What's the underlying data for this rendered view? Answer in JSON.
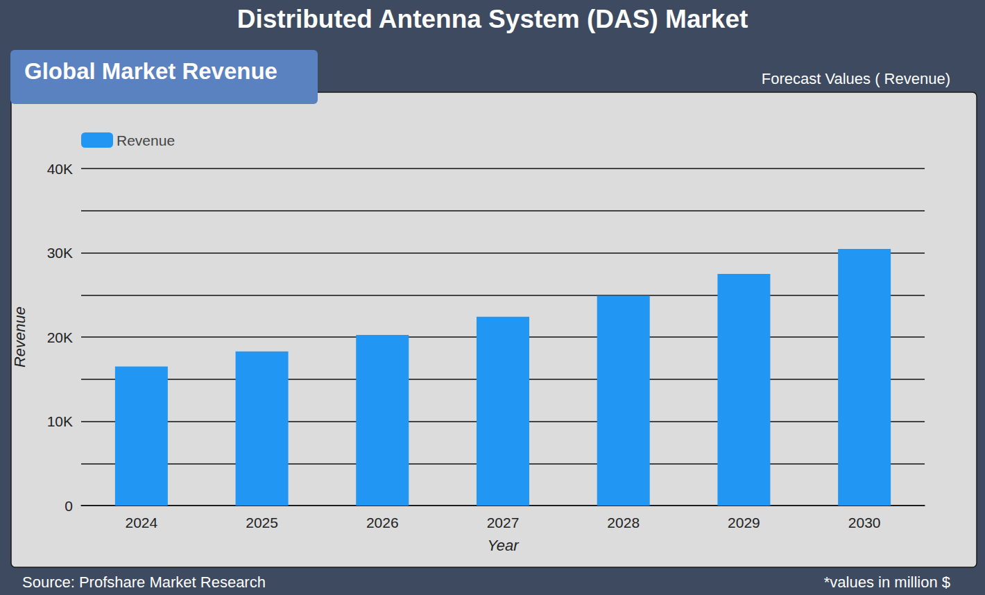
{
  "chart_data": {
    "type": "bar",
    "title": "Distributed Antenna System (DAS) Market",
    "subtitle": "Global Market Revenue",
    "annotations": [
      "Forecast Values ( Revenue)",
      "Source: Profshare Market Research",
      "*values in million $"
    ],
    "x_label": "Year",
    "y_label": "Revenue",
    "categories": [
      "2024",
      "2025",
      "2026",
      "2027",
      "2028",
      "2029",
      "2030"
    ],
    "series": [
      {
        "name": "Revenue",
        "color": "#2196f3",
        "values": [
          16500,
          18300,
          20250,
          22400,
          24900,
          27500,
          30450
        ]
      }
    ],
    "ylim": [
      0,
      40000
    ],
    "yticks": [
      0,
      {
        "value": 10000,
        "label": "10K"
      },
      {
        "value": 20000,
        "label": "20K"
      },
      {
        "value": 30000,
        "label": "30K"
      },
      {
        "value": 40000,
        "label": "40K"
      }
    ],
    "grid": true,
    "legend": "top-left"
  }
}
